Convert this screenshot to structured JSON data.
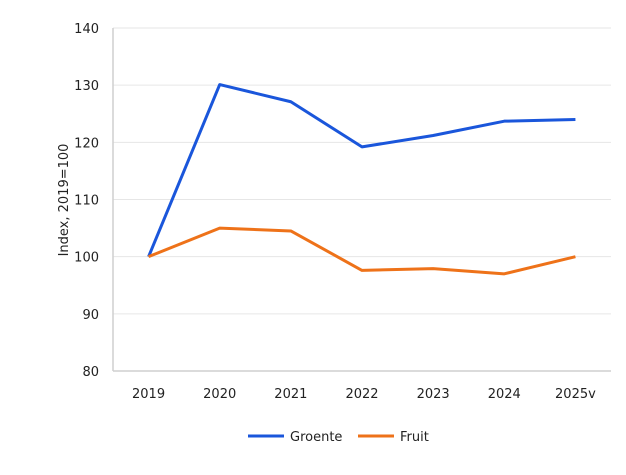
{
  "chart_data": {
    "type": "line",
    "title": "",
    "xlabel": "",
    "ylabel": "Index, 2019=100",
    "categories": [
      "2019",
      "2020",
      "2021",
      "2022",
      "2023",
      "2024",
      "2025v"
    ],
    "ylim": [
      80,
      140
    ],
    "yticks": [
      80,
      90,
      100,
      110,
      120,
      130,
      140
    ],
    "grid": true,
    "legend_position": "bottom",
    "series": [
      {
        "name": "Groente",
        "color": "#1a56db",
        "values": [
          100,
          130.1,
          127.1,
          119.2,
          121.2,
          123.7,
          124.0
        ]
      },
      {
        "name": "Fruit",
        "color": "#ee7219",
        "values": [
          100,
          105.0,
          104.5,
          97.6,
          97.9,
          97.0,
          100.0
        ]
      }
    ]
  }
}
